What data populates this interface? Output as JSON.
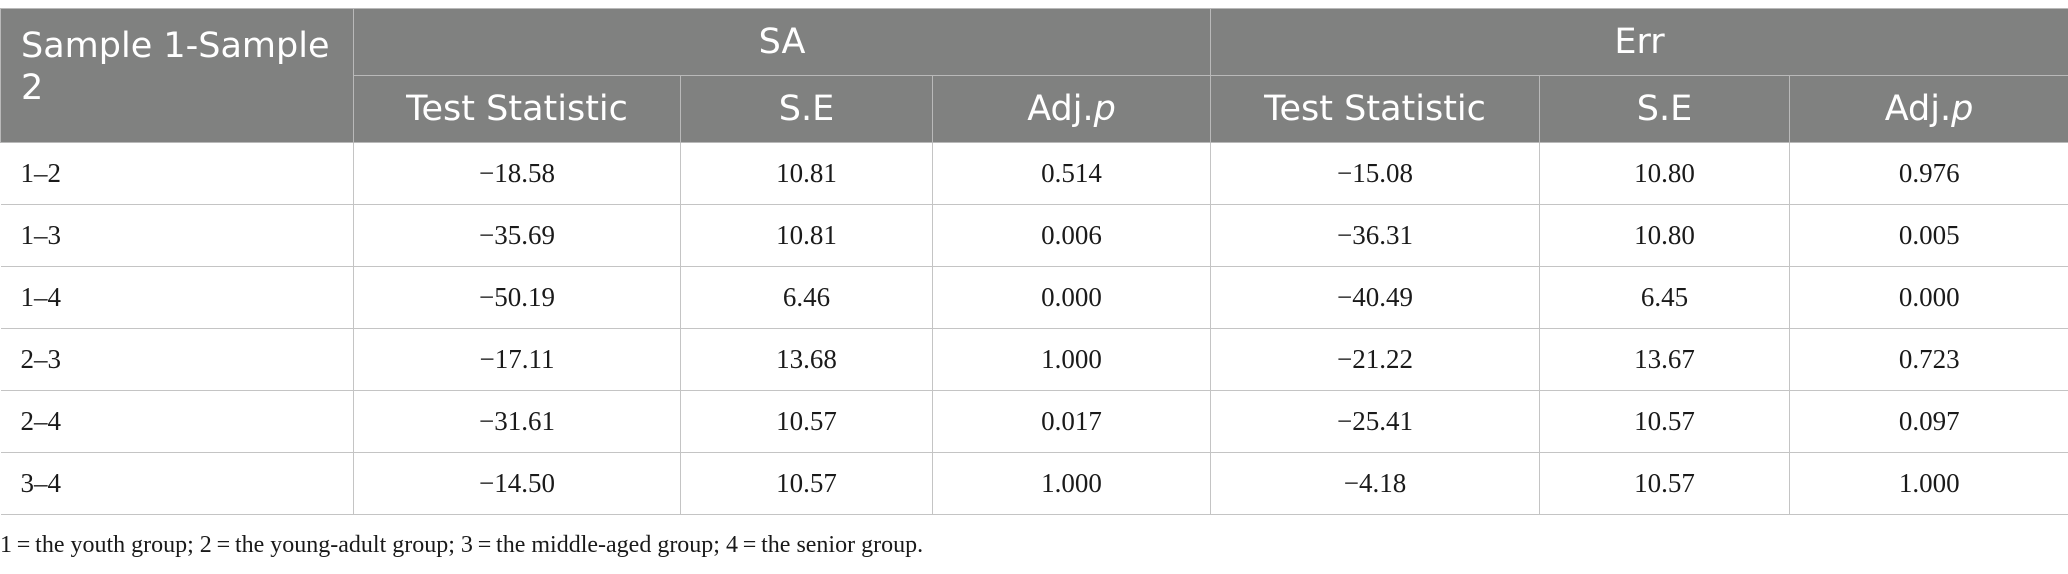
{
  "table": {
    "corner_label": "Sample 1-Sample 2",
    "groups": [
      "SA",
      "Err"
    ],
    "sub_headers": [
      {
        "main": "Test Statistic",
        "ital": ""
      },
      {
        "main": "S.E",
        "ital": ""
      },
      {
        "main": "Adj.",
        "ital": "p"
      },
      {
        "main": "Test Statistic",
        "ital": ""
      },
      {
        "main": "S.E",
        "ital": ""
      },
      {
        "main": "Adj.",
        "ital": "p"
      }
    ],
    "rows": [
      {
        "label": "1–2",
        "cells": [
          "−18.58",
          "10.81",
          "0.514",
          "−15.08",
          "10.80",
          "0.976"
        ]
      },
      {
        "label": "1–3",
        "cells": [
          "−35.69",
          "10.81",
          "0.006",
          "−36.31",
          "10.80",
          "0.005"
        ]
      },
      {
        "label": "1–4",
        "cells": [
          "−50.19",
          "6.46",
          "0.000",
          "−40.49",
          "6.45",
          "0.000"
        ]
      },
      {
        "label": "2–3",
        "cells": [
          "−17.11",
          "13.68",
          "1.000",
          "−21.22",
          "13.67",
          "0.723"
        ]
      },
      {
        "label": "2–4",
        "cells": [
          "−31.61",
          "10.57",
          "0.017",
          "−25.41",
          "10.57",
          "0.097"
        ]
      },
      {
        "label": "3–4",
        "cells": [
          "−14.50",
          "10.57",
          "1.000",
          "−4.18",
          "10.57",
          "1.000"
        ]
      }
    ]
  },
  "footnote": "1 = the youth group; 2 = the young-adult group; 3 = the middle-aged group; 4 = the senior group.",
  "colors": {
    "header_bg": "#808180",
    "header_text": "#ffffff",
    "grid": "#c4c4c4"
  }
}
